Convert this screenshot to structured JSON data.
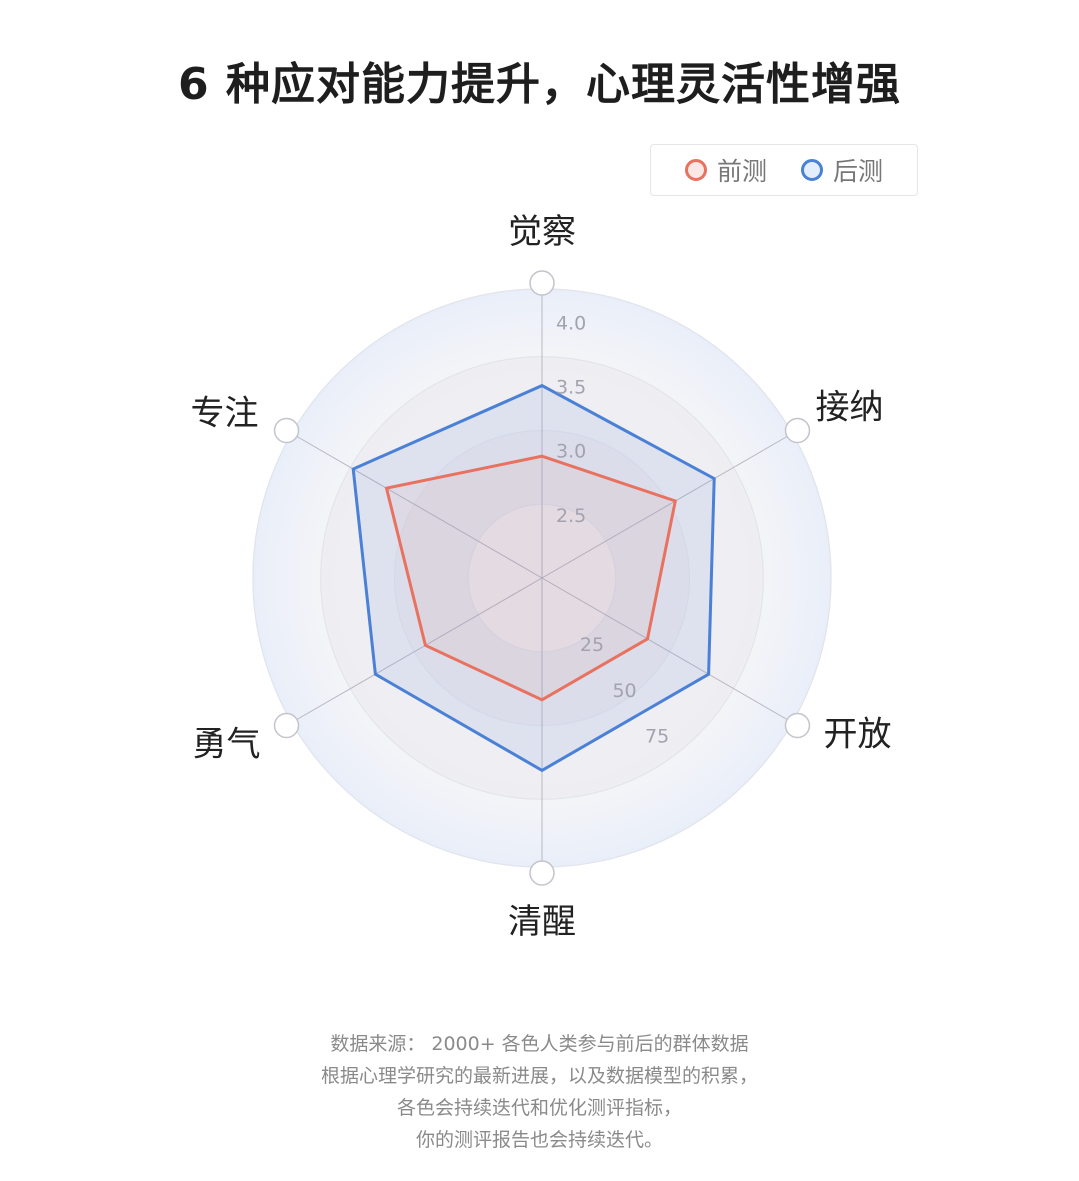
{
  "title": "6 种应对能力提升，心理灵活性增强",
  "colors": {
    "pre": "#e8725f",
    "post": "#4a80d6",
    "grid": "#e4e4ea",
    "axis": "#b8b8c4",
    "tick": "#a3a3b0"
  },
  "chart_data": {
    "type": "radar",
    "indicators": [
      "觉察",
      "接纳",
      "开放",
      "清醒",
      "勇气",
      "专注"
    ],
    "radial_tick_labels": [
      "4.0",
      "3.5",
      "3.0",
      "2.5"
    ],
    "secondary_tick_labels": [
      "25",
      "50",
      "75"
    ],
    "series": [
      {
        "name": "前测",
        "values": [
          2.95,
          3.2,
          2.95,
          2.95,
          3.05,
          3.4
        ]
      },
      {
        "name": "后测",
        "values": [
          3.5,
          3.55,
          3.5,
          3.5,
          3.5,
          3.7
        ]
      }
    ],
    "legend_position": "top-right"
  },
  "source_note": {
    "lines": [
      "数据来源：  2000+ 各色人类参与前后的群体数据",
      "根据心理学研究的最新进展，以及数据模型的积累，",
      "各色会持续迭代和优化测评指标，",
      "你的测评报告也会持续迭代。"
    ]
  }
}
